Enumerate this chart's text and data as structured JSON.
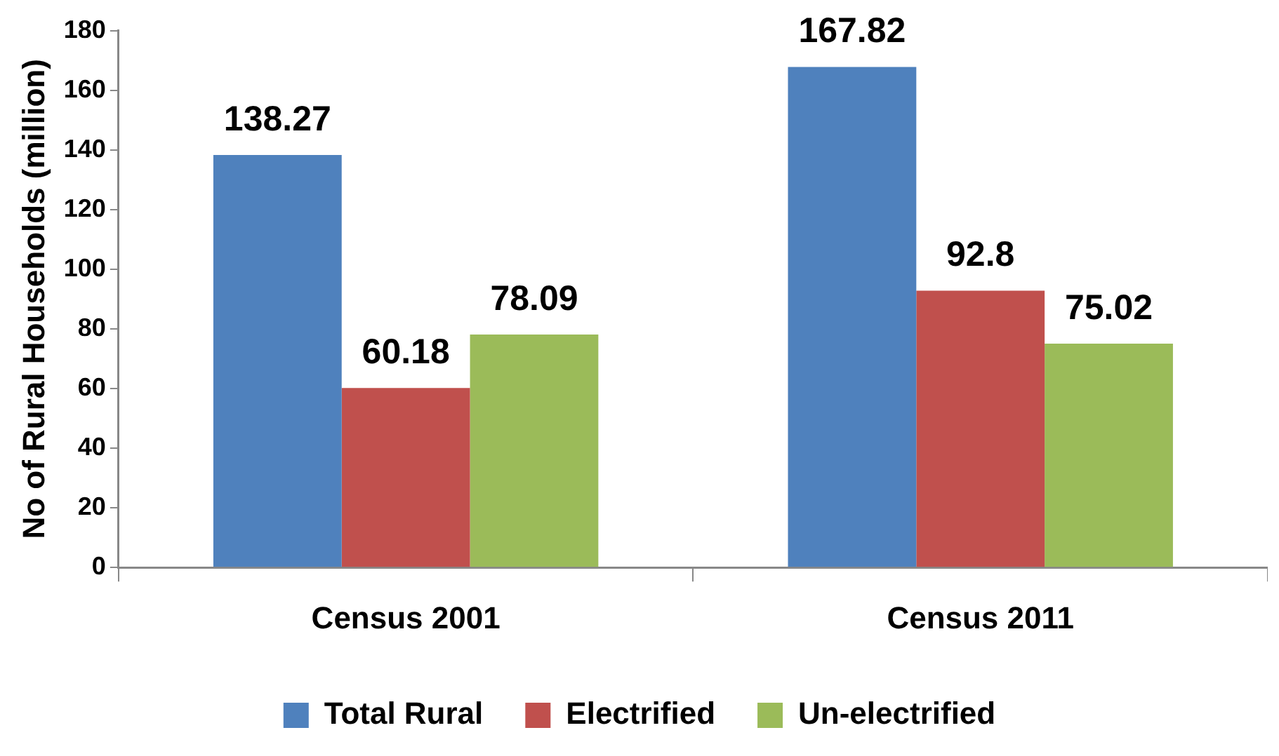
{
  "chart_data": {
    "type": "bar",
    "ylabel": "No of Rural Households (million)",
    "categories": [
      "Census 2001",
      "Census 2011"
    ],
    "series": [
      {
        "name": "Total Rural",
        "color": "#4f81bd",
        "values": [
          138.27,
          167.82
        ]
      },
      {
        "name": "Electrified",
        "color": "#c0504d",
        "values": [
          60.18,
          92.8
        ]
      },
      {
        "name": "Un-electrified",
        "color": "#9bbb59",
        "values": [
          78.09,
          75.02
        ]
      }
    ],
    "ylim": [
      0,
      180
    ],
    "yticks": [
      0,
      20,
      40,
      60,
      80,
      100,
      120,
      140,
      160,
      180
    ],
    "grid": false,
    "legend": "bottom",
    "data_labels": true
  }
}
